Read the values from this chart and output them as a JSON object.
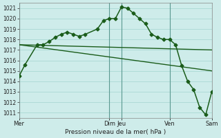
{
  "background_color": "#ceecea",
  "grid_color": "#aad8d4",
  "line_color": "#1a5c1a",
  "ylabel_text": "Pression niveau de la mer( hPa )",
  "ylim": [
    1010.5,
    1021.5
  ],
  "yticks": [
    1011,
    1012,
    1013,
    1014,
    1015,
    1016,
    1017,
    1018,
    1019,
    1020,
    1021
  ],
  "xlim": [
    0,
    16
  ],
  "vline_x": [
    0,
    7.5,
    8.5,
    12.5,
    16
  ],
  "xtick_positions": [
    0,
    7.5,
    8.5,
    12.5,
    16
  ],
  "xtick_labels": [
    "Mer",
    "Dim",
    "Jeu",
    "Ven",
    "Sam"
  ],
  "line1_x": [
    0,
    0.5,
    1.5,
    2,
    2.5,
    3,
    3.5,
    4,
    4.5,
    5,
    5.5,
    6.5,
    7,
    7.5,
    8,
    8.5,
    9,
    9.5,
    10,
    10.5,
    11,
    11.5,
    12,
    12.5,
    13,
    13.5,
    14,
    14.5,
    15,
    15.5,
    16
  ],
  "line1_y": [
    1014.5,
    1015.6,
    1017.5,
    1017.5,
    1017.8,
    1018.2,
    1018.5,
    1018.7,
    1018.5,
    1018.3,
    1018.5,
    1019.0,
    1019.8,
    1020.0,
    1020.0,
    1021.1,
    1021.0,
    1020.5,
    1020.0,
    1019.5,
    1018.5,
    1018.2,
    1018.0,
    1018.0,
    1017.5,
    1015.5,
    1014.0,
    1013.2,
    1011.5,
    1010.8,
    1013.0
  ],
  "line2_x": [
    0,
    16
  ],
  "line2_y": [
    1017.5,
    1017.0
  ],
  "line3_x": [
    0,
    16
  ],
  "line3_y": [
    1017.5,
    1015.0
  ]
}
